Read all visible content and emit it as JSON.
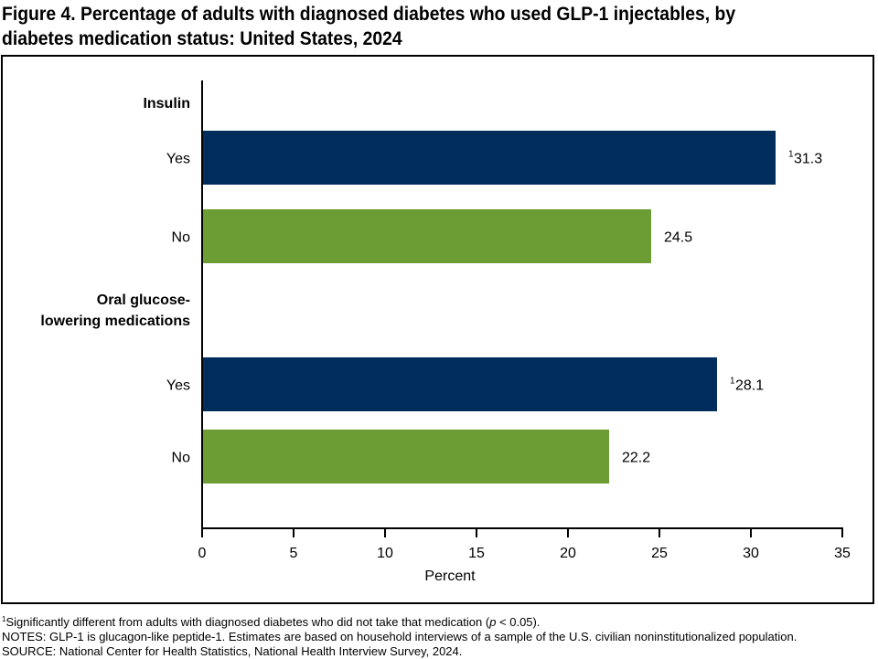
{
  "chart_data": {
    "type": "bar",
    "orientation": "horizontal",
    "title": "Figure 4. Percentage of adults with diagnosed diabetes who used GLP-1 injectables, by diabetes medication status: United States, 2024",
    "title_lines": [
      "Figure 4. Percentage of adults with diagnosed diabetes who used GLP-1 injectables, by",
      "diabetes medication status: United States, 2024"
    ],
    "groups": [
      {
        "label_lines": [
          "Insulin"
        ],
        "categories": [
          {
            "label": "Yes",
            "value": 31.3,
            "footnote": "1",
            "color": "#002d5c"
          },
          {
            "label": "No",
            "value": 24.5,
            "footnote": "",
            "color": "#6b9d34"
          }
        ]
      },
      {
        "label_lines": [
          "Oral glucose-",
          "lowering medications"
        ],
        "categories": [
          {
            "label": "Yes",
            "value": 28.1,
            "footnote": "1",
            "color": "#002d5c"
          },
          {
            "label": "No",
            "value": 22.2,
            "footnote": "",
            "color": "#6b9d34"
          }
        ]
      }
    ],
    "xlabel": "Percent",
    "xlim": [
      0,
      35
    ],
    "xticks": [
      "0",
      "5",
      "10",
      "15",
      "20",
      "25",
      "30",
      "35"
    ],
    "grid": false
  },
  "footer": {
    "footnote_marker": "1",
    "footnote": "Significantly different from adults with diagnosed diabetes who did not take that medication (",
    "footnote_p": "p",
    "footnote_end": " < 0.05).",
    "notes": "NOTES: GLP-1 is glucagon-like peptide-1. Estimates are based on household interviews of a sample of the U.S. civilian noninstitutionalized population.",
    "source": "SOURCE: National Center for Health Statistics, National Health Interview Survey, 2024."
  }
}
